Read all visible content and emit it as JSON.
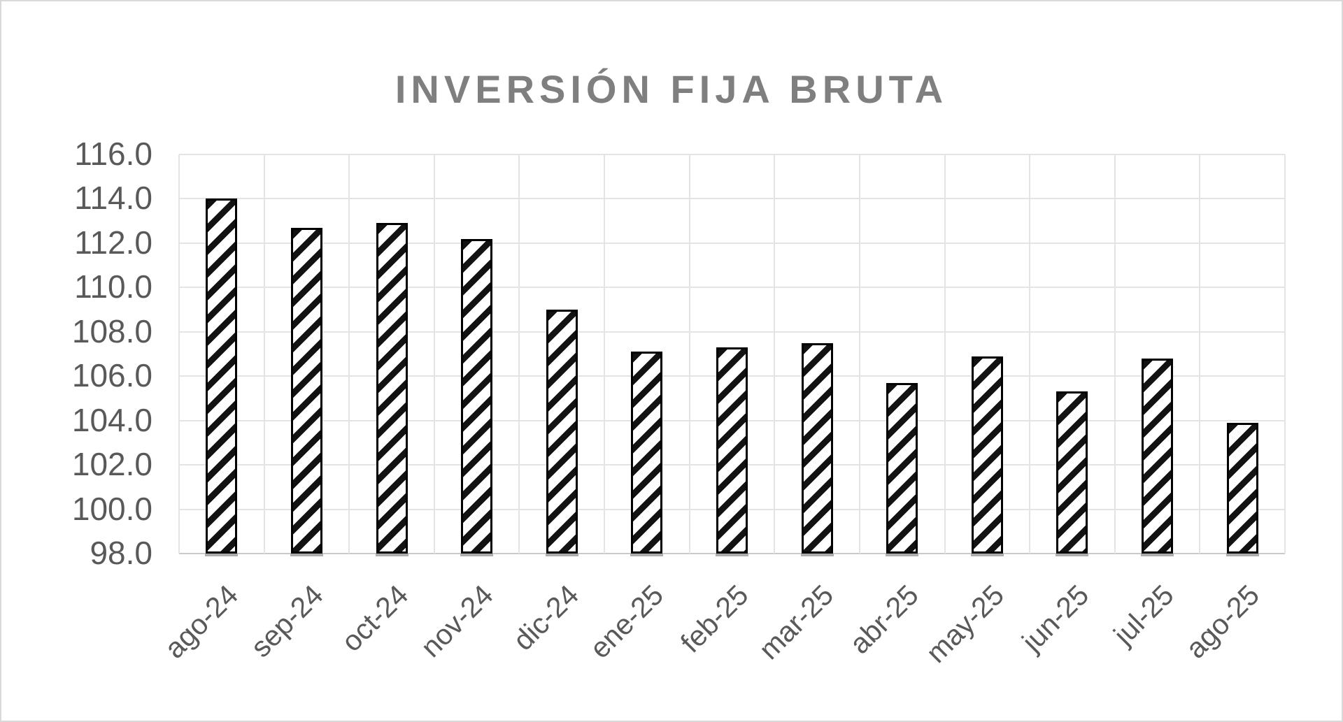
{
  "chart_data": {
    "type": "bar",
    "title": "INVERSIÓN FIJA BRUTA",
    "categories": [
      "ago-24",
      "sep-24",
      "oct-24",
      "nov-24",
      "dic-24",
      "ene-25",
      "feb-25",
      "mar-25",
      "abr-25",
      "may-25",
      "jun-25",
      "jul-25",
      "ago-25"
    ],
    "values": [
      114.0,
      112.7,
      112.9,
      112.2,
      109.0,
      107.1,
      107.3,
      107.5,
      105.7,
      106.9,
      105.3,
      106.8,
      103.9
    ],
    "ylim": [
      98.0,
      116.0
    ],
    "ytick_step": 2.0,
    "ytick_labels": [
      "116.0",
      "114.0",
      "112.0",
      "110.0",
      "108.0",
      "106.0",
      "104.0",
      "102.0",
      "100.0",
      "98.0"
    ],
    "xlabel": "",
    "ylabel": "",
    "grid": true,
    "legend_position": "none",
    "bar_pattern": "diagonal-hatch-forward-slash",
    "x_tick_rotation_deg": 45,
    "colors": {
      "title_text": "#7f7f7f",
      "tick_text": "#595959",
      "gridline": "#e4e4e4",
      "axis_line": "#c9c9c9",
      "bar_hatch": "#121212",
      "bar_fill": "#ffffff",
      "bar_border": "#000000",
      "chart_background": "#ffffff",
      "chart_border": "#d9d9d9"
    }
  }
}
